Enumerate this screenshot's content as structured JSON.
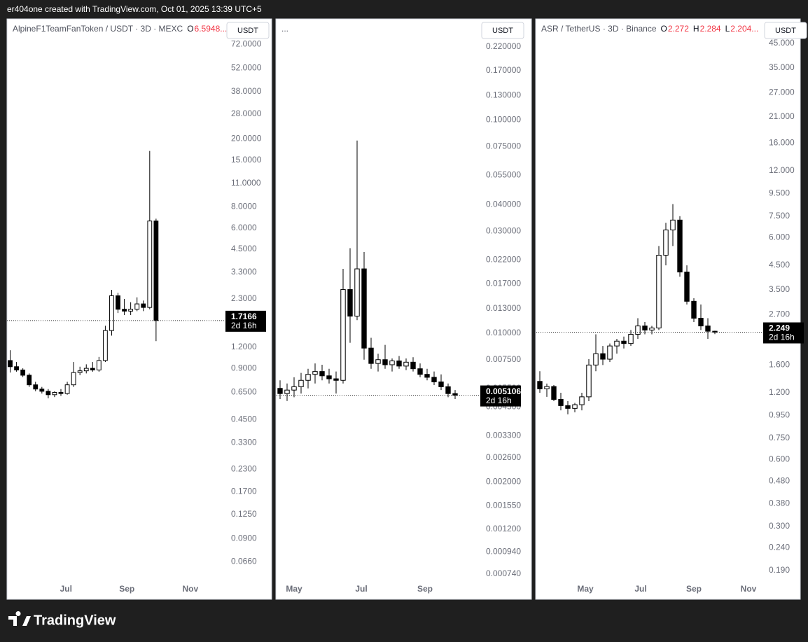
{
  "header": "er404one created with TradingView.com, Oct 01, 2025 13:39 UTC+5",
  "brand": "TradingView",
  "chart_data": [
    {
      "type": "candlestick",
      "title": "AlpineF1TeamFanToken / USDT · 3D · MEXC",
      "currency": "USDT",
      "countdown": "2d 16h",
      "legend": [
        {
          "key": "O",
          "text": "6.5948..."
        }
      ],
      "log_scale": true,
      "grid": false,
      "up_color": "#ffffff",
      "down_color": "#000000",
      "xlim": [
        0,
        34
      ],
      "ylim": [
        0.0507,
        98.5
      ],
      "xticks": [
        {
          "value": 9.3,
          "label": "Jul"
        },
        {
          "value": 18.9,
          "label": "Sep"
        },
        {
          "value": 28.9,
          "label": "Nov"
        }
      ],
      "yticks": [
        {
          "value": 72,
          "label": "72.0000"
        },
        {
          "value": 52,
          "label": "52.0000"
        },
        {
          "value": 38,
          "label": "38.0000"
        },
        {
          "value": 28,
          "label": "28.0000"
        },
        {
          "value": 20,
          "label": "20.0000"
        },
        {
          "value": 15,
          "label": "15.0000"
        },
        {
          "value": 11,
          "label": "11.0000"
        },
        {
          "value": 8,
          "label": "8.0000"
        },
        {
          "value": 6,
          "label": "6.0000"
        },
        {
          "value": 4.5,
          "label": "4.5000"
        },
        {
          "value": 3.3,
          "label": "3.3000"
        },
        {
          "value": 2.3,
          "label": "2.3000"
        },
        {
          "value": 1.2,
          "label": "1.2000"
        },
        {
          "value": 0.9,
          "label": "0.9000"
        },
        {
          "value": 0.65,
          "label": "0.6500"
        },
        {
          "value": 0.45,
          "label": "0.4500"
        },
        {
          "value": 0.33,
          "label": "0.3300"
        },
        {
          "value": 0.23,
          "label": "0.2300"
        },
        {
          "value": 0.17,
          "label": "0.1700"
        },
        {
          "value": 0.125,
          "label": "0.1250"
        },
        {
          "value": 0.09,
          "label": "0.0900"
        },
        {
          "value": 0.066,
          "label": "0.0660"
        }
      ],
      "open": [
        1.0,
        0.92,
        0.88,
        0.82,
        0.72,
        0.68,
        0.66,
        0.63,
        0.65,
        0.64,
        0.72,
        0.85,
        0.87,
        0.9,
        0.88,
        1.0,
        1.5,
        2.4,
        2.0,
        1.95,
        2.0,
        2.15,
        2.05,
        6.5948
      ],
      "high": [
        1.15,
        0.98,
        0.9,
        0.84,
        0.75,
        0.7,
        0.68,
        0.66,
        0.68,
        0.75,
        0.98,
        0.92,
        0.95,
        0.98,
        1.05,
        1.6,
        2.6,
        2.5,
        2.3,
        2.2,
        2.35,
        2.25,
        17.0,
        6.8
      ],
      "low": [
        0.85,
        0.86,
        0.8,
        0.7,
        0.66,
        0.64,
        0.6,
        0.61,
        0.62,
        0.63,
        0.7,
        0.82,
        0.84,
        0.86,
        0.86,
        0.98,
        1.4,
        1.9,
        1.85,
        1.85,
        1.95,
        1.95,
        2.0,
        1.3
      ],
      "close": [
        0.92,
        0.88,
        0.82,
        0.72,
        0.68,
        0.66,
        0.63,
        0.65,
        0.64,
        0.72,
        0.85,
        0.87,
        0.9,
        0.88,
        1.0,
        1.5,
        2.4,
        2.0,
        1.95,
        2.0,
        2.15,
        2.05,
        6.5948,
        1.7166
      ]
    },
    {
      "type": "candlestick",
      "title": "...",
      "currency": "USDT",
      "countdown": "2d 16h",
      "legend": [],
      "log_scale": true,
      "grid": false,
      "up_color": "#ffffff",
      "down_color": "#000000",
      "xlim": [
        0,
        29
      ],
      "ylim": [
        0.000686,
        0.291
      ],
      "xticks": [
        {
          "value": 2.5,
          "label": "May"
        },
        {
          "value": 12.1,
          "label": "Jul"
        },
        {
          "value": 21.2,
          "label": "Sep"
        }
      ],
      "yticks": [
        {
          "value": 0.22,
          "label": "0.220000"
        },
        {
          "value": 0.17,
          "label": "0.170000"
        },
        {
          "value": 0.13,
          "label": "0.130000"
        },
        {
          "value": 0.1,
          "label": "0.100000"
        },
        {
          "value": 0.075,
          "label": "0.075000"
        },
        {
          "value": 0.055,
          "label": "0.055000"
        },
        {
          "value": 0.04,
          "label": "0.040000"
        },
        {
          "value": 0.03,
          "label": "0.030000"
        },
        {
          "value": 0.022,
          "label": "0.022000"
        },
        {
          "value": 0.017,
          "label": "0.017000"
        },
        {
          "value": 0.013,
          "label": "0.013000"
        },
        {
          "value": 0.01,
          "label": "0.010000"
        },
        {
          "value": 0.0075,
          "label": "0.007500"
        },
        {
          "value": 0.0055,
          "label": "0.005500"
        },
        {
          "value": 0.0045,
          "label": "0.004500"
        },
        {
          "value": 0.0033,
          "label": "0.003300"
        },
        {
          "value": 0.0026,
          "label": "0.002600"
        },
        {
          "value": 0.002,
          "label": "0.002000"
        },
        {
          "value": 0.00155,
          "label": "0.001550"
        },
        {
          "value": 0.0012,
          "label": "0.001200"
        },
        {
          "value": 0.00094,
          "label": "0.000940"
        },
        {
          "value": 0.00074,
          "label": "0.000740"
        }
      ],
      "open": [
        0.0055,
        0.0052,
        0.0054,
        0.0056,
        0.006,
        0.0064,
        0.0066,
        0.0063,
        0.0061,
        0.006,
        0.016,
        0.012,
        0.02,
        0.0085,
        0.0072,
        0.0075,
        0.0071,
        0.0074,
        0.007,
        0.0073,
        0.0068,
        0.0064,
        0.0062,
        0.0059,
        0.0056,
        0.0052
      ],
      "high": [
        0.006,
        0.0058,
        0.0062,
        0.0065,
        0.0068,
        0.0072,
        0.0071,
        0.0068,
        0.0066,
        0.02,
        0.025,
        0.08,
        0.024,
        0.0095,
        0.008,
        0.0088,
        0.0076,
        0.0078,
        0.0076,
        0.0077,
        0.0072,
        0.0068,
        0.0066,
        0.0064,
        0.0058,
        0.0054
      ],
      "low": [
        0.0049,
        0.0048,
        0.005,
        0.0052,
        0.0055,
        0.0058,
        0.006,
        0.0058,
        0.0052,
        0.0058,
        0.009,
        0.0115,
        0.0075,
        0.0068,
        0.0066,
        0.0068,
        0.0066,
        0.0068,
        0.0067,
        0.0066,
        0.0062,
        0.006,
        0.0057,
        0.0054,
        0.005,
        0.0049
      ],
      "close": [
        0.0052,
        0.0054,
        0.0056,
        0.006,
        0.0064,
        0.0066,
        0.0063,
        0.0061,
        0.006,
        0.016,
        0.012,
        0.02,
        0.0085,
        0.0072,
        0.0075,
        0.0071,
        0.0074,
        0.007,
        0.0073,
        0.0068,
        0.0064,
        0.0062,
        0.0059,
        0.0056,
        0.0052,
        0.005106
      ]
    },
    {
      "type": "candlestick",
      "title": "ASR / TetherUS · 3D · Binance",
      "currency": "USDT",
      "countdown": "2d 16h",
      "legend": [
        {
          "key": "O",
          "text": "2.272"
        },
        {
          "key": "H",
          "text": "2.284"
        },
        {
          "key": "L",
          "text": "2.204..."
        }
      ],
      "log_scale": true,
      "grid": false,
      "up_color": "#ffffff",
      "down_color": "#000000",
      "xlim": [
        0,
        32
      ],
      "ylim": [
        0.17,
        56.8
      ],
      "xticks": [
        {
          "value": 7,
          "label": "May"
        },
        {
          "value": 14.9,
          "label": "Jul"
        },
        {
          "value": 22.5,
          "label": "Sep"
        },
        {
          "value": 30.3,
          "label": "Nov"
        }
      ],
      "yticks": [
        {
          "value": 45,
          "label": "45.000"
        },
        {
          "value": 35,
          "label": "35.000"
        },
        {
          "value": 27,
          "label": "27.000"
        },
        {
          "value": 21,
          "label": "21.000"
        },
        {
          "value": 16,
          "label": "16.000"
        },
        {
          "value": 12,
          "label": "12.000"
        },
        {
          "value": 9.5,
          "label": "9.500"
        },
        {
          "value": 7.5,
          "label": "7.500"
        },
        {
          "value": 6,
          "label": "6.000"
        },
        {
          "value": 4.5,
          "label": "4.500"
        },
        {
          "value": 3.5,
          "label": "3.500"
        },
        {
          "value": 2.7,
          "label": "2.700"
        },
        {
          "value": 1.6,
          "label": "1.600"
        },
        {
          "value": 1.2,
          "label": "1.200"
        },
        {
          "value": 0.95,
          "label": "0.950"
        },
        {
          "value": 0.75,
          "label": "0.750"
        },
        {
          "value": 0.6,
          "label": "0.600"
        },
        {
          "value": 0.48,
          "label": "0.480"
        },
        {
          "value": 0.38,
          "label": "0.380"
        },
        {
          "value": 0.3,
          "label": "0.300"
        },
        {
          "value": 0.24,
          "label": "0.240"
        },
        {
          "value": 0.19,
          "label": "0.190"
        }
      ],
      "open": [
        1.35,
        1.25,
        1.28,
        1.12,
        1.05,
        1.02,
        1.06,
        1.15,
        1.6,
        1.8,
        1.7,
        1.95,
        2.05,
        2.0,
        2.2,
        2.4,
        2.3,
        2.35,
        5.0,
        6.5,
        7.2,
        4.2,
        3.1,
        2.6,
        2.4,
        2.272
      ],
      "high": [
        1.5,
        1.32,
        1.3,
        1.2,
        1.1,
        1.08,
        1.2,
        1.7,
        2.2,
        1.95,
        2.0,
        2.1,
        2.15,
        2.3,
        2.6,
        2.5,
        2.4,
        5.5,
        7.0,
        8.5,
        7.5,
        4.5,
        3.2,
        3.0,
        2.6,
        2.284
      ],
      "low": [
        1.2,
        1.15,
        1.1,
        1.0,
        0.96,
        0.98,
        1.0,
        1.1,
        1.5,
        1.6,
        1.65,
        1.8,
        1.9,
        1.95,
        2.1,
        2.2,
        2.2,
        2.3,
        4.5,
        5.5,
        4.0,
        3.0,
        2.5,
        2.3,
        2.1,
        2.204
      ],
      "close": [
        1.25,
        1.28,
        1.12,
        1.05,
        1.02,
        1.06,
        1.15,
        1.6,
        1.8,
        1.7,
        1.95,
        2.05,
        2.0,
        2.2,
        2.4,
        2.3,
        2.35,
        5.0,
        6.5,
        7.2,
        4.2,
        3.1,
        2.6,
        2.4,
        2.272,
        2.249
      ]
    }
  ]
}
